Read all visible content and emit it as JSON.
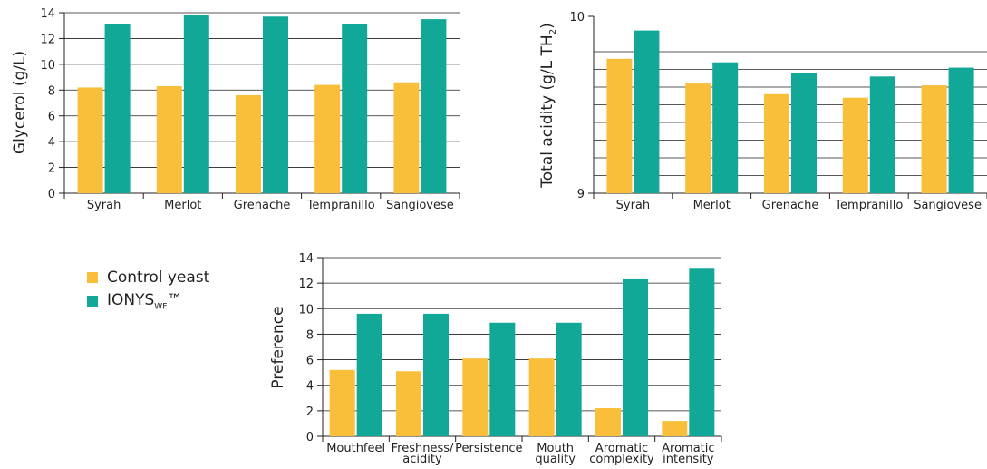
{
  "colors": {
    "control": "#f9be3a",
    "ionys": "#12a898",
    "grid": "#231f20"
  },
  "legend": {
    "control_label": "Control yeast",
    "ionys_base": "IONYS",
    "ionys_sub": "WF",
    "ionys_mark": "™"
  },
  "chart_data": [
    {
      "type": "bar",
      "categories": [
        "Syrah",
        "Merlot",
        "Grenache",
        "Tempranillo",
        "Sangiovese"
      ],
      "series": [
        {
          "name": "Control yeast",
          "values": [
            8.2,
            8.3,
            7.6,
            8.4,
            8.6
          ]
        },
        {
          "name": "IONYSWF™",
          "values": [
            13.1,
            13.8,
            13.7,
            13.1,
            13.5
          ]
        }
      ],
      "ylabel": "Glycerol (g/L)",
      "ylim": [
        0,
        14
      ],
      "yticks": [
        0,
        2,
        4,
        6,
        8,
        10,
        12,
        14
      ],
      "grid": true
    },
    {
      "type": "bar",
      "categories": [
        "Syrah",
        "Merlot",
        "Grenache",
        "Tempranillo",
        "Sangiovese"
      ],
      "series": [
        {
          "name": "Control yeast",
          "values": [
            9.76,
            9.62,
            9.56,
            9.54,
            9.61
          ]
        },
        {
          "name": "IONYSWF™",
          "values": [
            9.92,
            9.74,
            9.68,
            9.66,
            9.71
          ]
        }
      ],
      "ylabel": "Total acidity (g/L TH",
      "ylabel_sub": "2",
      "ylabel_end": ")",
      "ylim": [
        9,
        10
      ],
      "yticks": [
        9,
        10
      ],
      "grid_lines": [
        9.1,
        9.2,
        9.3,
        9.4,
        9.5,
        9.6,
        9.7,
        9.8,
        9.9
      ],
      "grid": true
    },
    {
      "type": "bar",
      "categories": [
        [
          "Mouthfeel"
        ],
        [
          "Freshness/",
          "acidity"
        ],
        [
          "Persistence"
        ],
        [
          "Mouth",
          "quality"
        ],
        [
          "Aromatic",
          "complexity"
        ],
        [
          "Aromatic",
          "intensity"
        ]
      ],
      "series": [
        {
          "name": "Control yeast",
          "values": [
            5.2,
            5.1,
            6.1,
            6.1,
            2.2,
            1.2
          ]
        },
        {
          "name": "IONYSWF™",
          "values": [
            9.6,
            9.6,
            8.9,
            8.9,
            12.3,
            13.2
          ]
        }
      ],
      "ylabel": "Preference",
      "ylim": [
        0,
        14
      ],
      "yticks": [
        0,
        2,
        4,
        6,
        8,
        10,
        12,
        14
      ],
      "grid": true
    }
  ]
}
